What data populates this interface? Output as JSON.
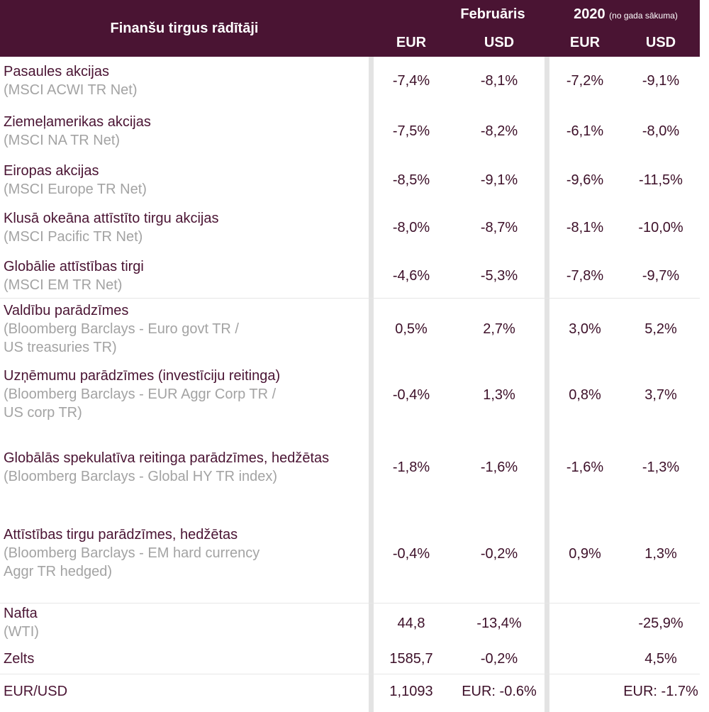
{
  "header": {
    "title": "Finanšu tirgus rādītāji",
    "group1": "Februāris",
    "group2": "2020",
    "group2_note": "(no gada sākuma)",
    "currencies": [
      "EUR",
      "USD",
      "EUR",
      "USD"
    ]
  },
  "rows": [
    {
      "label": "Pasaules akcijas",
      "sub": "(MSCI ACWI TR Net)",
      "values": [
        "-7,4%",
        "-8,1%",
        "-7,2%",
        "-9,1%"
      ]
    },
    {
      "label": "Ziemeļamerikas akcijas",
      "sub": "(MSCI NA TR Net)",
      "values": [
        "-7,5%",
        "-8,2%",
        "-6,1%",
        "-8,0%"
      ]
    },
    {
      "label": "Eiropas akcijas",
      "sub": "(MSCI Europe TR Net)",
      "values": [
        "-8,5%",
        "-9,1%",
        "-9,6%",
        "-11,5%"
      ]
    },
    {
      "label": "Klusā okeāna attīstīto tirgu akcijas",
      "sub": "(MSCI Pacific TR Net)",
      "values": [
        "-8,0%",
        "-8,7%",
        "-8,1%",
        "-10,0%"
      ]
    },
    {
      "label": "Globālie attīstības tirgi",
      "sub": "(MSCI EM TR Net)",
      "values": [
        "-4,6%",
        "-5,3%",
        "-7,8%",
        "-9,7%"
      ]
    },
    {
      "label": "Valdību parādzīmes",
      "sub": "(Bloomberg Barclays - Euro govt TR /\n US treasuries TR)",
      "values": [
        "0,5%",
        "2,7%",
        "3,0%",
        "5,2%"
      ]
    },
    {
      "label": "Uzņēmumu parādzīmes (investīciju reitinga)",
      "sub": "(Bloomberg Barclays - EUR Aggr Corp TR /\nUS corp TR)",
      "values": [
        "-0,4%",
        "1,3%",
        "0,8%",
        "3,7%"
      ]
    },
    {
      "label": "Globālās spekulatīva reitinga parādzīmes, hedžētas",
      "sub": "(Bloomberg Barclays - Global HY TR index)",
      "values": [
        "-1,8%",
        "-1,6%",
        "-1,6%",
        "-1,3%"
      ]
    },
    {
      "label": "Attīstības tirgu parādzīmes, hedžētas",
      "sub": "(Bloomberg Barclays - EM hard currency\nAggr TR hedged)",
      "values": [
        "-0,4%",
        "-0,2%",
        "0,9%",
        "1,3%"
      ]
    },
    {
      "label": "Nafta",
      "sub": "(WTI)",
      "values": [
        "44,8",
        "-13,4%",
        "",
        "-25,9%"
      ]
    },
    {
      "label": "Zelts",
      "sub": "",
      "values": [
        "1585,7",
        "-0,2%",
        "",
        "4,5%"
      ]
    },
    {
      "label": "EUR/USD",
      "sub": "",
      "values": [
        "1,1093",
        "EUR: -0.6%",
        "",
        "EUR: -1.7%"
      ]
    }
  ],
  "colors": {
    "header_bg": "#4a1433",
    "label": "#4a1433",
    "sub": "#a3a3a3",
    "divider": "#e3e3e3"
  }
}
